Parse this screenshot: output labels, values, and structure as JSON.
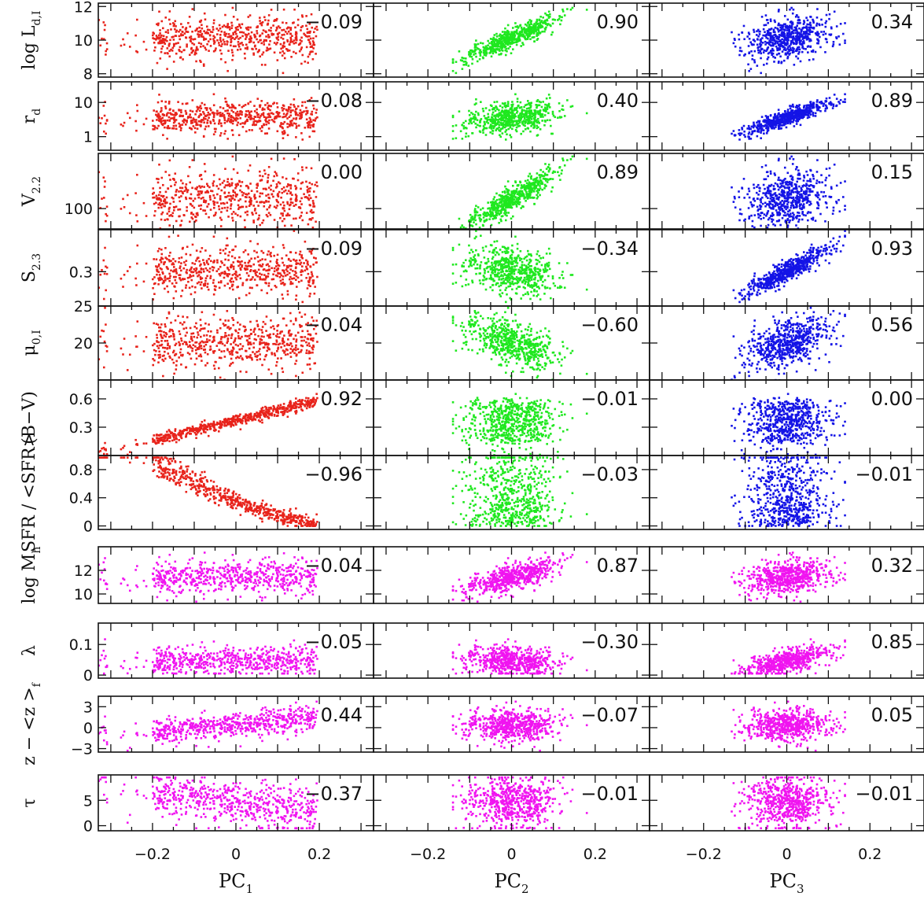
{
  "chart_data": {
    "type": "scatter",
    "columns": [
      {
        "label": "PC",
        "sub": "1",
        "xlim": [
          -0.33,
          0.33
        ],
        "ticks": [
          -0.2,
          0,
          0.2
        ],
        "tick_labels": [
          "−0.2",
          "0",
          "0.2"
        ]
      },
      {
        "label": "PC",
        "sub": "2",
        "xlim": [
          -0.33,
          0.33
        ],
        "ticks": [
          -0.2,
          0,
          0.2
        ],
        "tick_labels": [
          "−0.2",
          "0",
          "0.2"
        ]
      },
      {
        "label": "PC",
        "sub": "3",
        "xlim": [
          -0.33,
          0.33
        ],
        "ticks": [
          -0.2,
          0,
          0.2
        ],
        "tick_labels": [
          "−0.2",
          "0",
          "0.2"
        ]
      }
    ],
    "rows": [
      {
        "ylabel": "log L",
        "ysub": "d,I",
        "kind": "linear",
        "ylim": [
          7.8,
          12.2
        ],
        "ticks": [
          8,
          10,
          12
        ],
        "tick_labels": [
          "8",
          "10",
          "12"
        ],
        "color": "#e8231b",
        "coefficients": [
          "−0.09",
          "0.90",
          "0.34"
        ]
      },
      {
        "ylabel": "r",
        "ysub": "d",
        "kind": "log",
        "ylim": [
          0.4,
          40
        ],
        "ticks": [
          1,
          10
        ],
        "tick_labels": [
          "1",
          "10"
        ],
        "color": "#e8231b",
        "coefficients": [
          "−0.08",
          "0.40",
          "0.89"
        ]
      },
      {
        "ylabel": "V",
        "ysub": "2.2",
        "kind": "log",
        "ylim": [
          60,
          400
        ],
        "ticks": [
          100
        ],
        "tick_labels": [
          "100"
        ],
        "color": "#e8231b",
        "coefficients": [
          "0.00",
          "0.89",
          "0.15"
        ]
      },
      {
        "ylabel": "S",
        "ysub": "2.3",
        "kind": "log",
        "ylim": [
          0.15,
          0.7
        ],
        "ticks": [
          0.3
        ],
        "tick_labels": [
          "0.3"
        ],
        "color": "#e8231b",
        "coefficients": [
          "−0.09",
          "−0.34",
          "0.93"
        ]
      },
      {
        "ylabel": "μ",
        "ysub": "0,I",
        "kind": "linear",
        "ylim": [
          15,
          25
        ],
        "ticks": [
          20,
          25
        ],
        "tick_labels": [
          "20",
          "25"
        ],
        "color": "#e8231b",
        "coefficients": [
          "−0.04",
          "−0.60",
          "0.56"
        ]
      },
      {
        "ylabel": "(B−V)",
        "ysub": "",
        "kind": "linear",
        "ylim": [
          0.0,
          0.8
        ],
        "ticks": [
          0.3,
          0.6
        ],
        "tick_labels": [
          "0.3",
          "0.6"
        ],
        "color": "#e8231b",
        "coefficients": [
          "0.92",
          "−0.01",
          "0.00"
        ]
      },
      {
        "ylabel": "SFR / <SFR>",
        "ysub": "",
        "kind": "linear",
        "ylim": [
          -0.05,
          1.0
        ],
        "ticks": [
          0,
          0.4,
          0.8
        ],
        "tick_labels": [
          "0",
          "0.4",
          "0.8"
        ],
        "color": "#e8231b",
        "coefficients": [
          "−0.96",
          "−0.03",
          "−0.01"
        ]
      },
      {
        "ylabel": "log M",
        "ysub": "h",
        "kind": "linear",
        "ylim": [
          9.2,
          14.0
        ],
        "ticks": [
          10,
          12
        ],
        "tick_labels": [
          "10",
          "12"
        ],
        "color": "#f014f0",
        "coefficients": [
          "−0.04",
          "0.87",
          "0.32"
        ]
      },
      {
        "ylabel": "λ",
        "ysub": "",
        "kind": "linear",
        "ylim": [
          -0.01,
          0.17
        ],
        "ticks": [
          0,
          0.1
        ],
        "tick_labels": [
          "0",
          "0.1"
        ],
        "color": "#f014f0",
        "coefficients": [
          "−0.05",
          "−0.30",
          "0.85"
        ]
      },
      {
        "ylabel": "z − <z >",
        "ysub": "f",
        "kind": "linear",
        "ylim": [
          -3.5,
          4.5
        ],
        "ticks": [
          -3,
          0,
          3
        ],
        "tick_labels": [
          "−3",
          "0",
          "3"
        ],
        "color": "#f014f0",
        "coefficients": [
          "0.44",
          "−0.07",
          "0.05"
        ]
      },
      {
        "ylabel": "τ",
        "ysub": "",
        "kind": "linear",
        "ylim": [
          -1,
          10
        ],
        "ticks": [
          0,
          5
        ],
        "tick_labels": [
          "0",
          "5"
        ],
        "color": "#f014f0",
        "coefficients": [
          "−0.37",
          "−0.01",
          "−0.01"
        ]
      }
    ],
    "column_colors": [
      "#e8231b",
      "#1fe81f",
      "#1414e6"
    ],
    "magenta_rows_color": "#f014f0",
    "points_per_panel": 600,
    "point_cloud_summary": [
      {
        "row": "log L d,I",
        "vs": "PC2",
        "trend": "tight positive",
        "x_range": [
          -0.12,
          0.16
        ],
        "y_range": [
          8.5,
          11.6
        ]
      },
      {
        "row": "r d",
        "vs": "PC3",
        "trend": "tight positive",
        "x_range": [
          -0.14,
          0.12
        ],
        "y_range": [
          0.6,
          12
        ]
      },
      {
        "row": "V 2.2",
        "vs": "PC2",
        "trend": "positive",
        "x_range": [
          -0.12,
          0.14
        ],
        "y_range": [
          80,
          300
        ]
      },
      {
        "row": "S 2.3",
        "vs": "PC3",
        "trend": "tight positive",
        "x_range": [
          -0.14,
          0.12
        ],
        "y_range": [
          0.18,
          0.4
        ]
      },
      {
        "row": "(B−V)",
        "vs": "PC1",
        "trend": "tight positive",
        "x_range": [
          -0.3,
          0.18
        ],
        "y_range": [
          0.1,
          0.6
        ]
      },
      {
        "row": "SFR/<SFR>",
        "vs": "PC1",
        "trend": "tight negative",
        "x_range": [
          -0.15,
          0.22
        ],
        "y_range": [
          0,
          0.9
        ]
      },
      {
        "row": "log M h",
        "vs": "PC2",
        "trend": "tight positive",
        "x_range": [
          -0.11,
          0.17
        ],
        "y_range": [
          10.5,
          13
        ]
      },
      {
        "row": "λ",
        "vs": "PC3",
        "trend": "positive",
        "x_range": [
          -0.13,
          0.12
        ],
        "y_range": [
          0.01,
          0.1
        ]
      }
    ]
  }
}
